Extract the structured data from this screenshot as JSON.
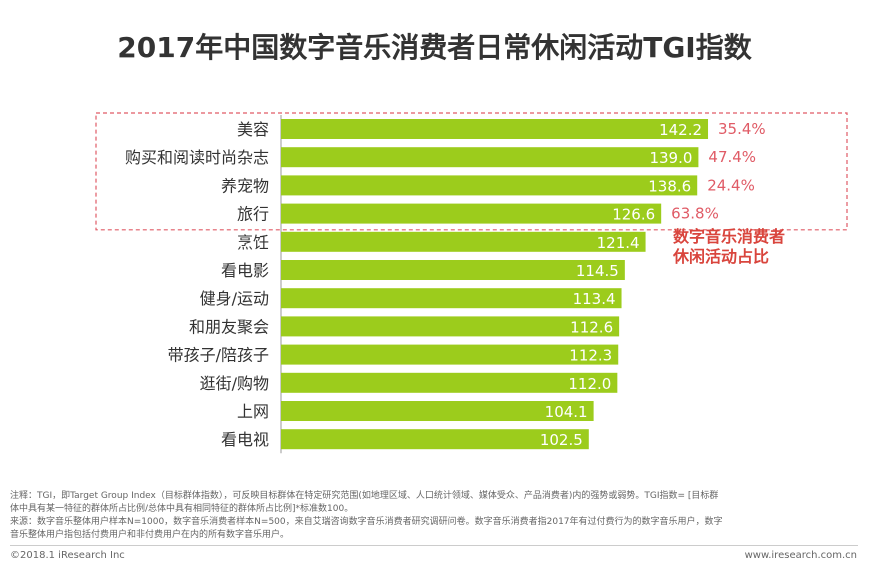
{
  "title": "2017年中国数字音乐消费者日常休闲活动TGI指数",
  "chart_data": {
    "type": "bar",
    "orientation": "horizontal",
    "title": "2017年中国数字音乐消费者日常休闲活动TGI指数",
    "categories": [
      "美容",
      "购买和阅读时尚杂志",
      "养宠物",
      "旅行",
      "烹饪",
      "看电影",
      "健身/运动",
      "和朋友聚会",
      "带孩子/陪孩子",
      "逛街/购物",
      "上网",
      "看电视"
    ],
    "values": [
      142.2,
      139.0,
      138.6,
      126.6,
      121.4,
      114.5,
      113.4,
      112.6,
      112.3,
      112.0,
      104.1,
      102.5
    ],
    "value_labels": [
      "142.2",
      "139.0",
      "138.6",
      "126.6",
      "121.4",
      "114.5",
      "113.4",
      "112.6",
      "112.3",
      "112.0",
      "104.1",
      "102.5"
    ],
    "highlight": {
      "categories": [
        "美容",
        "购买和阅读时尚杂志",
        "养宠物",
        "旅行"
      ],
      "share_labels": [
        "35.4%",
        "47.4%",
        "24.4%",
        "63.8%"
      ],
      "annotation": [
        "数字音乐消费者",
        "休闲活动占比"
      ]
    },
    "bar_color": "#9ccc1c",
    "highlight_color": "#e05b66",
    "xlim": [
      0,
      150
    ]
  },
  "notes": {
    "line1": "注释：TGI，即Target Group Index（目标群体指数），可反映目标群体在特定研究范围(如地理区域、人口统计领域、媒体受众、产品消费者)内的强势或弱势。TGI指数= [目标群",
    "line2": "体中具有某一特征的群体所占比例/总体中具有相同特征的群体所占比例]*标准数100。",
    "line3": "来源：数字音乐整体用户样本N=1000，数字音乐消费者样本N=500，来自艾瑞咨询数字音乐消费者研究调研问卷。数字音乐消费者指2017年有过付费行为的数字音乐用户，数字",
    "line4": "音乐整体用户指包括付费用户和非付费用户在内的所有数字音乐用户。"
  },
  "footer": {
    "copyright": "©2018.1 iResearch Inc",
    "website": "www.iresearch.com.cn"
  }
}
